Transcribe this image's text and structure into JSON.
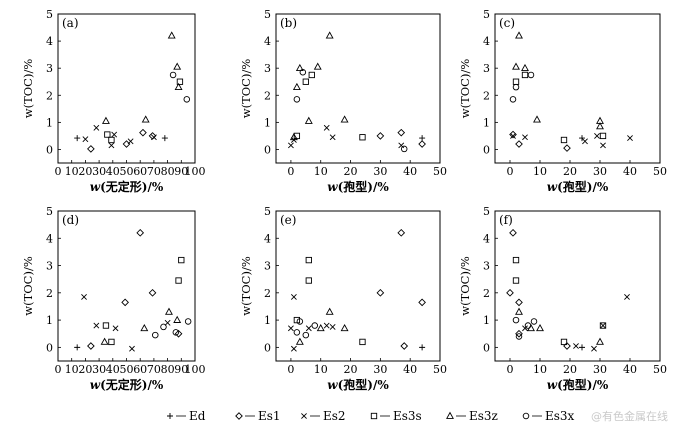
{
  "watermark": "@有色金属在线",
  "legend": [
    {
      "symbol": "plus",
      "label": "Ed"
    },
    {
      "symbol": "diamond",
      "label": "Es1"
    },
    {
      "symbol": "cross",
      "label": "Es2"
    },
    {
      "symbol": "square",
      "label": "Es3s"
    },
    {
      "symbol": "triangle",
      "label": "Es3z"
    },
    {
      "symbol": "circle",
      "label": "Es3x"
    }
  ],
  "chart_data": [
    {
      "type": "scatter",
      "panel": "(a)",
      "xlabel_prefix": "w",
      "xlabel_rest": "(无定形)/%",
      "ylabel": "w(TOC)/%",
      "xlim": [
        0,
        100
      ],
      "ylim": [
        -0.5,
        5
      ],
      "xticks": [
        0,
        10,
        20,
        30,
        40,
        50,
        60,
        70,
        80,
        90,
        100
      ],
      "yticks": [
        0,
        1,
        2,
        3,
        4,
        5
      ],
      "series": [
        {
          "name": "Ed",
          "points": [
            [
              14,
              0.42
            ],
            [
              78,
              0.42
            ]
          ]
        },
        {
          "name": "Es1",
          "points": [
            [
              24,
              0.02
            ],
            [
              50,
              0.2
            ],
            [
              62,
              0.62
            ],
            [
              69,
              0.5
            ]
          ]
        },
        {
          "name": "Es2",
          "points": [
            [
              20,
              0.38
            ],
            [
              28,
              0.8
            ],
            [
              39,
              0.15
            ],
            [
              41,
              0.55
            ],
            [
              53,
              0.3
            ],
            [
              70,
              0.45
            ]
          ]
        },
        {
          "name": "Es3s",
          "points": [
            [
              36,
              0.55
            ],
            [
              39,
              0.35
            ],
            [
              89,
              2.5
            ]
          ]
        },
        {
          "name": "Es3z",
          "points": [
            [
              35,
              1.05
            ],
            [
              64,
              1.1
            ],
            [
              83,
              4.2
            ],
            [
              87,
              3.05
            ],
            [
              88,
              2.3
            ]
          ]
        },
        {
          "name": "Es3x",
          "points": [
            [
              84,
              2.75
            ],
            [
              94,
              1.85
            ]
          ]
        }
      ]
    },
    {
      "type": "scatter",
      "panel": "(b)",
      "xlabel_prefix": "w",
      "xlabel_rest": "(孢型)/%",
      "ylabel": "w(TOC)/%",
      "xlim": [
        -5,
        50
      ],
      "ylim": [
        -0.5,
        5
      ],
      "xticks": [
        0,
        10,
        20,
        30,
        40,
        50
      ],
      "yticks": [
        0,
        1,
        2,
        3,
        4,
        5
      ],
      "series": [
        {
          "name": "Ed",
          "points": [
            [
              44,
              0.42
            ]
          ]
        },
        {
          "name": "Es1",
          "points": [
            [
              30,
              0.5
            ],
            [
              37,
              0.62
            ],
            [
              44,
              0.2
            ]
          ]
        },
        {
          "name": "Es2",
          "points": [
            [
              0,
              0.15
            ],
            [
              1,
              0.35
            ],
            [
              12,
              0.8
            ],
            [
              14,
              0.45
            ],
            [
              37,
              0.15
            ]
          ]
        },
        {
          "name": "Es3s",
          "points": [
            [
              2,
              0.5
            ],
            [
              5,
              2.5
            ],
            [
              7,
              2.75
            ],
            [
              24,
              0.45
            ]
          ]
        },
        {
          "name": "Es3z",
          "points": [
            [
              1,
              0.45
            ],
            [
              2,
              2.3
            ],
            [
              3,
              3.0
            ],
            [
              6,
              1.05
            ],
            [
              9,
              3.05
            ],
            [
              13,
              4.2
            ],
            [
              18,
              1.1
            ]
          ]
        },
        {
          "name": "Es3x",
          "points": [
            [
              2,
              1.85
            ],
            [
              4,
              2.85
            ],
            [
              38,
              0.02
            ]
          ]
        }
      ]
    },
    {
      "type": "scatter",
      "panel": "(c)",
      "xlabel_prefix": "w",
      "xlabel_rest": "(孢型)/%",
      "ylabel": "w(TOC)/%",
      "xlim": [
        -5,
        50
      ],
      "ylim": [
        -0.5,
        5
      ],
      "xticks": [
        0,
        10,
        20,
        30,
        40,
        50
      ],
      "yticks": [
        0,
        1,
        2,
        3,
        4,
        5
      ],
      "series": [
        {
          "name": "Ed",
          "points": [
            [
              24,
              0.42
            ]
          ]
        },
        {
          "name": "Es1",
          "points": [
            [
              1,
              0.55
            ],
            [
              3,
              0.2
            ],
            [
              19,
              0.05
            ]
          ]
        },
        {
          "name": "Es2",
          "points": [
            [
              1,
              0.5
            ],
            [
              5,
              0.45
            ],
            [
              25,
              0.3
            ],
            [
              29,
              0.5
            ],
            [
              31,
              0.15
            ],
            [
              40,
              0.42
            ]
          ]
        },
        {
          "name": "Es3s",
          "points": [
            [
              2,
              2.5
            ],
            [
              5,
              2.75
            ],
            [
              18,
              0.35
            ],
            [
              31,
              0.5
            ]
          ]
        },
        {
          "name": "Es3z",
          "points": [
            [
              2,
              3.05
            ],
            [
              3,
              4.2
            ],
            [
              5,
              3.0
            ],
            [
              9,
              1.1
            ],
            [
              30,
              1.05
            ],
            [
              30,
              0.85
            ]
          ]
        },
        {
          "name": "Es3x",
          "points": [
            [
              1,
              1.85
            ],
            [
              2,
              2.3
            ],
            [
              7,
              2.75
            ]
          ]
        }
      ]
    },
    {
      "type": "scatter",
      "panel": "(d)",
      "xlabel_prefix": "w",
      "xlabel_rest": "(无定形)/%",
      "ylabel": "w(TOC)/%",
      "xlim": [
        0,
        100
      ],
      "ylim": [
        -0.5,
        5
      ],
      "xticks": [
        0,
        10,
        20,
        30,
        40,
        50,
        60,
        70,
        80,
        90,
        100
      ],
      "yticks": [
        0,
        1,
        2,
        3,
        4,
        5
      ],
      "series": [
        {
          "name": "Ed",
          "points": [
            [
              14,
              0.0
            ]
          ]
        },
        {
          "name": "Es1",
          "points": [
            [
              24,
              0.05
            ],
            [
              49,
              1.65
            ],
            [
              60,
              4.2
            ],
            [
              69,
              2.0
            ],
            [
              88,
              0.5
            ]
          ]
        },
        {
          "name": "Es2",
          "points": [
            [
              19,
              1.85
            ],
            [
              28,
              0.8
            ],
            [
              42,
              0.7
            ],
            [
              54,
              -0.05
            ],
            [
              80,
              0.9
            ]
          ]
        },
        {
          "name": "Es3s",
          "points": [
            [
              35,
              0.8
            ],
            [
              39,
              0.2
            ],
            [
              88,
              2.45
            ],
            [
              90,
              3.2
            ]
          ]
        },
        {
          "name": "Es3z",
          "points": [
            [
              34,
              0.2
            ],
            [
              63,
              0.7
            ],
            [
              81,
              1.3
            ],
            [
              87,
              1.0
            ]
          ]
        },
        {
          "name": "Es3x",
          "points": [
            [
              71,
              0.45
            ],
            [
              77,
              0.75
            ],
            [
              86,
              0.55
            ],
            [
              95,
              0.95
            ]
          ]
        }
      ]
    },
    {
      "type": "scatter",
      "panel": "(e)",
      "xlabel_prefix": "w",
      "xlabel_rest": "(孢型)/%",
      "ylabel": "w(TOC)/%",
      "xlim": [
        -5,
        50
      ],
      "ylim": [
        -0.5,
        5
      ],
      "xticks": [
        0,
        10,
        20,
        30,
        40,
        50
      ],
      "yticks": [
        0,
        1,
        2,
        3,
        4,
        5
      ],
      "series": [
        {
          "name": "Ed",
          "points": [
            [
              44,
              0.0
            ]
          ]
        },
        {
          "name": "Es1",
          "points": [
            [
              30,
              2.0
            ],
            [
              37,
              4.2
            ],
            [
              38,
              0.05
            ],
            [
              44,
              1.65
            ]
          ]
        },
        {
          "name": "Es2",
          "points": [
            [
              0,
              0.7
            ],
            [
              1,
              1.85
            ],
            [
              1,
              -0.05
            ],
            [
              6,
              0.7
            ],
            [
              12,
              0.8
            ],
            [
              14,
              0.75
            ]
          ]
        },
        {
          "name": "Es3s",
          "points": [
            [
              2,
              1.0
            ],
            [
              6,
              2.45
            ],
            [
              6,
              3.2
            ],
            [
              24,
              0.2
            ]
          ]
        },
        {
          "name": "Es3z",
          "points": [
            [
              3,
              0.2
            ],
            [
              10,
              0.7
            ],
            [
              13,
              1.3
            ],
            [
              18,
              0.7
            ]
          ]
        },
        {
          "name": "Es3x",
          "points": [
            [
              2,
              0.55
            ],
            [
              3,
              0.95
            ],
            [
              5,
              0.45
            ],
            [
              8,
              0.8
            ]
          ]
        }
      ]
    },
    {
      "type": "scatter",
      "panel": "(f)",
      "xlabel_prefix": "w",
      "xlabel_rest": "(孢型)/%",
      "ylabel": "w(TOC)/%",
      "xlim": [
        -5,
        50
      ],
      "ylim": [
        -0.5,
        5
      ],
      "xticks": [
        0,
        10,
        20,
        30,
        40,
        50
      ],
      "yticks": [
        0,
        1,
        2,
        3,
        4,
        5
      ],
      "series": [
        {
          "name": "Ed",
          "points": [
            [
              24,
              0.0
            ]
          ]
        },
        {
          "name": "Es1",
          "points": [
            [
              1,
              4.2
            ],
            [
              0,
              2.0
            ],
            [
              3,
              1.65
            ],
            [
              3,
              0.5
            ],
            [
              19,
              0.05
            ]
          ]
        },
        {
          "name": "Es2",
          "points": [
            [
              39,
              1.85
            ],
            [
              5,
              0.7
            ],
            [
              22,
              0.05
            ],
            [
              28,
              -0.05
            ],
            [
              31,
              0.8
            ]
          ]
        },
        {
          "name": "Es3s",
          "points": [
            [
              2,
              3.2
            ],
            [
              2,
              2.45
            ],
            [
              18,
              0.2
            ],
            [
              31,
              0.8
            ]
          ]
        },
        {
          "name": "Es3z",
          "points": [
            [
              3,
              1.3
            ],
            [
              7,
              0.7
            ],
            [
              10,
              0.7
            ],
            [
              30,
              0.2
            ]
          ]
        },
        {
          "name": "Es3x",
          "points": [
            [
              2,
              1.0
            ],
            [
              3,
              0.4
            ],
            [
              6,
              0.8
            ],
            [
              8,
              0.95
            ]
          ]
        }
      ]
    }
  ]
}
